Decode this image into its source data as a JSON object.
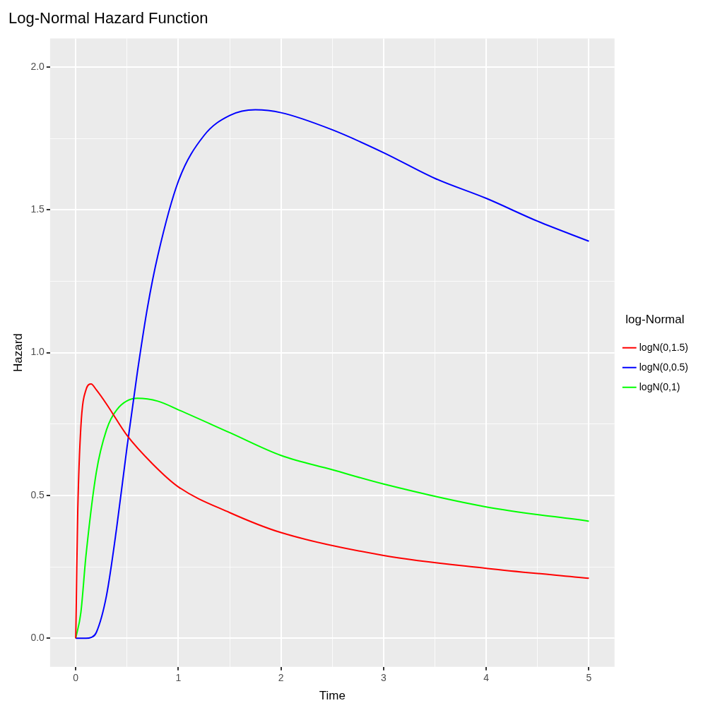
{
  "chart_data": {
    "type": "line",
    "title": "Log-Normal Hazard Function",
    "xlabel": "Time",
    "ylabel": "Hazard",
    "legend_title": "log-Normal",
    "legend": "right",
    "grid": true,
    "marker": "none",
    "line_style": "solid",
    "xlim": [
      -0.25,
      5.25
    ],
    "xticks": [
      0,
      {
        "value": 0.5,
        "label": null
      },
      1,
      {
        "value": 1.5,
        "label": null
      },
      2,
      {
        "value": 2.5,
        "label": null
      },
      3,
      {
        "value": 3.5,
        "label": null
      },
      4,
      {
        "value": 4.5,
        "label": null
      },
      5
    ],
    "ylim": [
      -0.1,
      2.1
    ],
    "yticks": [
      {
        "value": 0,
        "label": "0.0"
      },
      {
        "value": 0.25,
        "label": null
      },
      0.5,
      {
        "value": 0.75,
        "label": null
      },
      {
        "value": 1,
        "label": "1.0"
      },
      {
        "value": 1.25,
        "label": null
      },
      1.5,
      {
        "value": 1.75,
        "label": null
      },
      {
        "value": 2,
        "label": "2.0"
      }
    ],
    "series": [
      {
        "name": "logN(0,1.5)",
        "color": "#ff0000",
        "x": [
          0,
          0.005,
          0.01,
          0.02,
          0.05,
          0.1,
          0.15,
          0.2,
          0.3,
          0.5,
          0.75,
          1,
          1.5,
          2,
          3,
          4,
          5
        ],
        "values": [
          0,
          0.11,
          0.24,
          0.45,
          0.74,
          0.87,
          0.89,
          0.87,
          0.82,
          0.71,
          0.61,
          0.53,
          0.44,
          0.37,
          0.29,
          0.245,
          0.21
        ]
      },
      {
        "name": "logN(0,0.5)",
        "color": "#0000ff",
        "x": [
          0,
          0.1,
          0.15,
          0.2,
          0.3,
          0.4,
          0.5,
          0.6,
          0.7,
          0.8,
          1,
          1.25,
          1.5,
          1.75,
          2,
          2.5,
          3,
          3.5,
          4,
          4.5,
          5
        ],
        "values": [
          0,
          0,
          0.003,
          0.02,
          0.15,
          0.39,
          0.67,
          0.93,
          1.16,
          1.34,
          1.6,
          1.76,
          1.83,
          1.85,
          1.84,
          1.78,
          1.7,
          1.61,
          1.54,
          1.46,
          1.39
        ]
      },
      {
        "name": "logN(0,1)",
        "color": "#00ff00",
        "x": [
          0,
          0.05,
          0.1,
          0.2,
          0.3,
          0.4,
          0.6,
          0.8,
          1,
          1.5,
          2,
          2.5,
          3,
          4,
          5
        ],
        "values": [
          0,
          0.09,
          0.29,
          0.58,
          0.73,
          0.8,
          0.84,
          0.83,
          0.8,
          0.72,
          0.64,
          0.59,
          0.54,
          0.46,
          0.41
        ]
      }
    ]
  }
}
